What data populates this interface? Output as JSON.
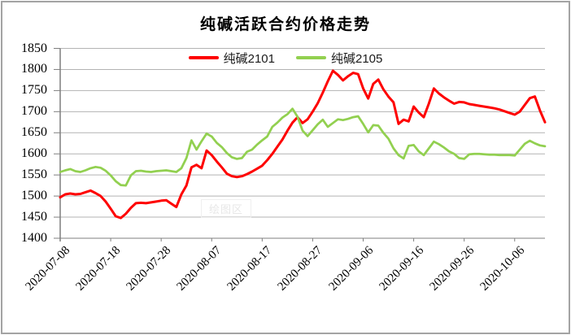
{
  "title": "纯碱活跃合约价格走势",
  "watermark": "绘图区",
  "colors": {
    "series1": "#fe0000",
    "series2": "#92d050",
    "gridline": "#b3b3b3",
    "axis": "#7f7f7f"
  },
  "chart_data": {
    "type": "line",
    "title": "纯碱活跃合约价格走势",
    "xlabel": "",
    "ylabel": "",
    "ylim": [
      1400,
      1850
    ],
    "y_ticks": [
      1400,
      1450,
      1500,
      1550,
      1600,
      1650,
      1700,
      1750,
      1800,
      1850
    ],
    "grid": "horizontal",
    "legend_position": "top-center",
    "x_tick_labels": [
      "2020-07-08",
      "2020-07-18",
      "2020-07-28",
      "2020-08-07",
      "2020-08-17",
      "2020-08-27",
      "2020-09-06",
      "2020-09-16",
      "2020-09-26",
      "2020-10-06"
    ],
    "x_tick_every": 10,
    "series": [
      {
        "name": "纯碱2101",
        "color": "#fe0000",
        "values": [
          1497,
          1504,
          1506,
          1504,
          1505,
          1509,
          1513,
          1507,
          1500,
          1487,
          1470,
          1452,
          1448,
          1458,
          1472,
          1483,
          1484,
          1483,
          1485,
          1487,
          1489,
          1490,
          1482,
          1474,
          1504,
          1525,
          1568,
          1574,
          1566,
          1608,
          1597,
          1582,
          1568,
          1553,
          1547,
          1545,
          1547,
          1552,
          1558,
          1565,
          1572,
          1585,
          1600,
          1617,
          1634,
          1655,
          1674,
          1687,
          1673,
          1682,
          1700,
          1720,
          1745,
          1772,
          1797,
          1787,
          1774,
          1784,
          1792,
          1789,
          1755,
          1731,
          1766,
          1776,
          1753,
          1736,
          1722,
          1671,
          1681,
          1677,
          1712,
          1698,
          1687,
          1719,
          1755,
          1743,
          1734,
          1726,
          1719,
          1723,
          1722,
          1718,
          1716,
          1714,
          1712,
          1710,
          1708,
          1705,
          1701,
          1697,
          1693,
          1700,
          1716,
          1732,
          1736,
          1703,
          1675
        ]
      },
      {
        "name": "纯碱2105",
        "color": "#92d050",
        "values": [
          1557,
          1561,
          1564,
          1559,
          1557,
          1561,
          1566,
          1569,
          1567,
          1560,
          1549,
          1535,
          1526,
          1525,
          1549,
          1559,
          1560,
          1558,
          1557,
          1559,
          1560,
          1561,
          1559,
          1557,
          1566,
          1590,
          1632,
          1610,
          1630,
          1648,
          1641,
          1626,
          1616,
          1602,
          1592,
          1588,
          1590,
          1605,
          1610,
          1622,
          1632,
          1641,
          1664,
          1674,
          1686,
          1694,
          1707,
          1688,
          1655,
          1642,
          1656,
          1670,
          1681,
          1664,
          1673,
          1682,
          1680,
          1683,
          1687,
          1689,
          1671,
          1651,
          1668,
          1667,
          1650,
          1636,
          1613,
          1597,
          1589,
          1619,
          1621,
          1606,
          1597,
          1613,
          1629,
          1623,
          1615,
          1606,
          1600,
          1590,
          1588,
          1599,
          1600,
          1600,
          1599,
          1598,
          1598,
          1597,
          1597,
          1597,
          1596,
          1610,
          1624,
          1631,
          1625,
          1620,
          1618
        ]
      }
    ]
  }
}
